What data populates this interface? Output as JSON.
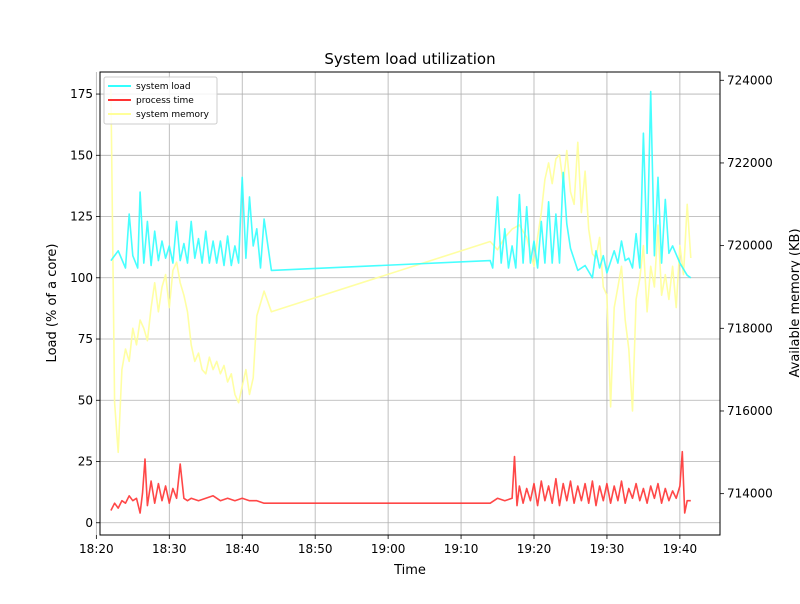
{
  "chart_data": {
    "type": "line",
    "title": "System load utilization",
    "xlabel": "Time",
    "ylabel": "Load (% of a core)",
    "y2label": "Available memory (KB)",
    "grid": true,
    "legend_placement": "top-left",
    "xlim": [
      "18:20:30",
      "19:45:30"
    ],
    "ylim": [
      -5,
      184
    ],
    "y2lim": [
      713000,
      724200
    ],
    "x_ticks": [
      "18:20",
      "18:30",
      "18:40",
      "18:50",
      "19:00",
      "19:10",
      "19:20",
      "19:30",
      "19:40"
    ],
    "y_ticks": [
      0,
      25,
      50,
      75,
      100,
      125,
      150,
      175
    ],
    "y2_ticks": [
      714000,
      716000,
      718000,
      720000,
      722000,
      724000
    ],
    "series": [
      {
        "name": "system load",
        "axis": "left",
        "color": "#33ffff",
        "x": [
          "18:22:00",
          "18:23:00",
          "18:24:00",
          "18:24:30",
          "18:25:00",
          "18:25:40",
          "18:26:00",
          "18:26:30",
          "18:27:00",
          "18:27:30",
          "18:28:00",
          "18:28:30",
          "18:29:00",
          "18:29:30",
          "18:30:00",
          "18:30:30",
          "18:31:00",
          "18:31:30",
          "18:32:00",
          "18:32:30",
          "18:33:00",
          "18:33:30",
          "18:34:00",
          "18:34:30",
          "18:35:00",
          "18:35:30",
          "18:36:00",
          "18:36:30",
          "18:37:00",
          "18:37:30",
          "18:38:00",
          "18:38:30",
          "18:39:00",
          "18:39:30",
          "18:40:00",
          "18:40:30",
          "18:41:00",
          "18:41:30",
          "18:42:00",
          "18:42:30",
          "18:43:00",
          "18:44:00",
          "19:14:00",
          "19:14:20",
          "19:15:00",
          "19:15:30",
          "19:16:00",
          "19:16:30",
          "19:17:00",
          "19:17:30",
          "19:18:00",
          "19:18:30",
          "19:19:00",
          "19:19:30",
          "19:20:00",
          "19:20:30",
          "19:21:00",
          "19:21:30",
          "19:22:00",
          "19:22:30",
          "19:23:00",
          "19:23:30",
          "19:24:00",
          "19:24:30",
          "19:25:00",
          "19:26:00",
          "19:27:00",
          "19:28:00",
          "19:28:30",
          "19:29:00",
          "19:29:30",
          "19:30:00",
          "19:31:00",
          "19:31:30",
          "19:32:00",
          "19:32:30",
          "19:33:00",
          "19:33:30",
          "19:34:00",
          "19:34:30",
          "19:35:00",
          "19:35:30",
          "19:36:00",
          "19:36:30",
          "19:37:00",
          "19:37:30",
          "19:38:00",
          "19:38:30",
          "19:39:00",
          "19:40:00",
          "19:41:00",
          "19:41:30"
        ],
        "values": [
          107,
          111,
          104,
          126,
          109,
          104,
          135,
          106,
          123,
          105,
          119,
          107,
          115,
          108,
          113,
          106,
          123,
          107,
          114,
          106,
          123,
          108,
          116,
          106,
          119,
          106,
          115,
          106,
          115,
          105,
          117,
          105,
          113,
          106,
          141,
          108,
          133,
          113,
          120,
          104,
          124,
          103,
          107,
          104,
          133,
          106,
          120,
          104,
          113,
          104,
          134,
          106,
          129,
          106,
          115,
          104,
          123,
          106,
          131,
          106,
          126,
          106,
          143,
          122,
          112,
          103,
          105,
          100,
          111,
          104,
          109,
          102,
          111,
          106,
          115,
          107,
          108,
          104,
          118,
          104,
          159,
          110,
          176,
          109,
          141,
          106,
          132,
          110,
          113,
          106,
          101,
          100
        ]
      },
      {
        "name": "process time",
        "axis": "left",
        "color": "#ff3333",
        "x": [
          "18:22:00",
          "18:22:30",
          "18:23:00",
          "18:23:30",
          "18:24:00",
          "18:24:30",
          "18:25:00",
          "18:25:30",
          "18:26:00",
          "18:26:20",
          "18:26:40",
          "18:27:00",
          "18:27:30",
          "18:28:00",
          "18:28:30",
          "18:29:00",
          "18:29:30",
          "18:30:00",
          "18:30:30",
          "18:31:00",
          "18:31:30",
          "18:32:00",
          "18:32:30",
          "18:33:00",
          "18:34:00",
          "18:35:00",
          "18:36:00",
          "18:37:00",
          "18:38:00",
          "18:39:00",
          "18:40:00",
          "18:41:00",
          "18:42:00",
          "18:43:00",
          "18:44:00",
          "19:14:00",
          "19:15:00",
          "19:16:00",
          "19:17:00",
          "19:17:20",
          "19:17:40",
          "19:18:00",
          "19:18:30",
          "19:19:00",
          "19:19:30",
          "19:20:00",
          "19:20:30",
          "19:21:00",
          "19:21:30",
          "19:22:00",
          "19:22:30",
          "19:23:00",
          "19:23:30",
          "19:24:00",
          "19:24:30",
          "19:25:00",
          "19:25:30",
          "19:26:00",
          "19:26:30",
          "19:27:00",
          "19:27:30",
          "19:28:00",
          "19:28:30",
          "19:29:00",
          "19:29:30",
          "19:30:00",
          "19:30:30",
          "19:31:00",
          "19:31:30",
          "19:32:00",
          "19:32:30",
          "19:33:00",
          "19:33:30",
          "19:34:00",
          "19:34:30",
          "19:35:00",
          "19:35:30",
          "19:36:00",
          "19:36:30",
          "19:37:00",
          "19:37:30",
          "19:38:00",
          "19:38:30",
          "19:39:00",
          "19:39:30",
          "19:40:00",
          "19:40:20",
          "19:40:40",
          "19:41:00",
          "19:41:30"
        ],
        "values": [
          5,
          8,
          6,
          9,
          8,
          11,
          9,
          10,
          4,
          12,
          26,
          7,
          17,
          8,
          16,
          9,
          15,
          8,
          14,
          10,
          24,
          10,
          9,
          10,
          9,
          10,
          11,
          9,
          10,
          9,
          10,
          9,
          9,
          8,
          8,
          8,
          10,
          9,
          10,
          27,
          7,
          15,
          8,
          14,
          9,
          16,
          7,
          17,
          9,
          15,
          8,
          18,
          7,
          16,
          9,
          17,
          8,
          15,
          9,
          16,
          8,
          17,
          7,
          15,
          9,
          16,
          8,
          15,
          9,
          17,
          8,
          14,
          10,
          16,
          9,
          14,
          8,
          15,
          10,
          16,
          8,
          14,
          9,
          13,
          10,
          15,
          29,
          4,
          9,
          9
        ]
      },
      {
        "name": "system memory",
        "axis": "right",
        "color": "#ffff99",
        "x": [
          "18:22:00",
          "18:22:30",
          "18:23:00",
          "18:23:30",
          "18:24:00",
          "18:24:30",
          "18:25:00",
          "18:25:30",
          "18:26:00",
          "18:26:30",
          "18:27:00",
          "18:27:30",
          "18:28:00",
          "18:28:30",
          "18:29:00",
          "18:29:30",
          "18:30:00",
          "18:30:30",
          "18:31:00",
          "18:31:30",
          "18:32:00",
          "18:32:30",
          "18:33:00",
          "18:33:30",
          "18:34:00",
          "18:34:30",
          "18:35:00",
          "18:35:30",
          "18:36:00",
          "18:36:30",
          "18:37:00",
          "18:37:30",
          "18:38:00",
          "18:38:30",
          "18:39:00",
          "18:39:30",
          "18:40:00",
          "18:40:30",
          "18:41:00",
          "18:41:30",
          "18:42:00",
          "18:43:00",
          "18:44:00",
          "19:14:00",
          "19:15:00",
          "19:16:00",
          "19:17:00",
          "19:18:00",
          "19:19:00",
          "19:20:00",
          "19:20:30",
          "19:21:00",
          "19:21:30",
          "19:22:00",
          "19:22:30",
          "19:23:00",
          "19:23:30",
          "19:24:00",
          "19:24:30",
          "19:25:00",
          "19:25:30",
          "19:26:00",
          "19:26:30",
          "19:27:00",
          "19:27:30",
          "19:28:00",
          "19:28:30",
          "19:29:00",
          "19:29:30",
          "19:30:00",
          "19:30:30",
          "19:31:00",
          "19:31:30",
          "19:32:00",
          "19:32:30",
          "19:33:00",
          "19:33:30",
          "19:34:00",
          "19:34:30",
          "19:35:00",
          "19:35:30",
          "19:36:00",
          "19:36:30",
          "19:37:00",
          "19:37:30",
          "19:38:00",
          "19:38:30",
          "19:39:00",
          "19:39:30",
          "19:40:00",
          "19:40:30",
          "19:41:00",
          "19:41:30"
        ],
        "values": [
          723800,
          716200,
          715000,
          717000,
          717500,
          717200,
          718000,
          717600,
          718200,
          718000,
          717700,
          718500,
          719100,
          718400,
          719000,
          719300,
          718500,
          719400,
          719600,
          719100,
          718800,
          718400,
          717600,
          717200,
          717400,
          717000,
          716900,
          717300,
          717000,
          717200,
          716900,
          717100,
          716700,
          716900,
          716400,
          716200,
          716600,
          717000,
          716400,
          716800,
          718300,
          718900,
          718400,
          720100,
          719900,
          720200,
          720400,
          720500,
          720200,
          719500,
          720200,
          720800,
          721600,
          722000,
          721500,
          722100,
          722200,
          721500,
          722300,
          721300,
          721000,
          722500,
          720800,
          721800,
          720400,
          719800,
          719700,
          720200,
          719000,
          718800,
          716100,
          718500,
          719000,
          719500,
          718200,
          717500,
          716000,
          718700,
          719200,
          720000,
          718400,
          719500,
          719000,
          720500,
          718800,
          719300,
          718700,
          719500,
          718500,
          720000,
          719300,
          721000,
          719700
        ]
      }
    ]
  }
}
